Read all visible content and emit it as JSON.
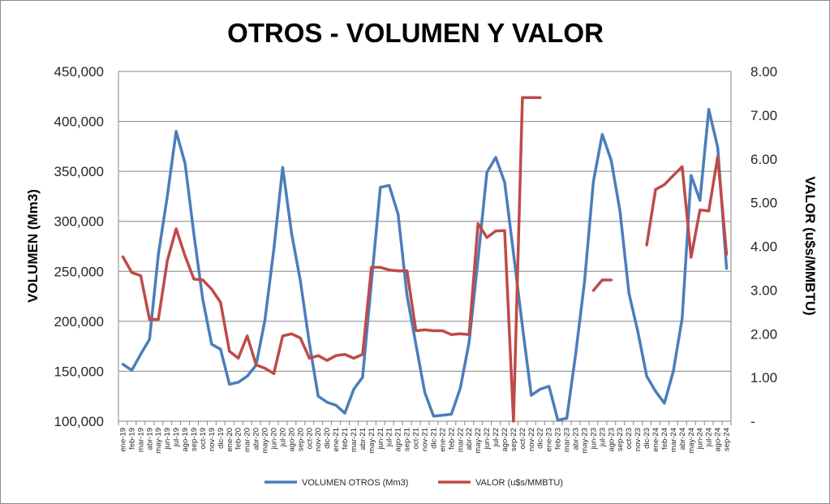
{
  "chart_data": {
    "type": "line",
    "title": "OTROS - VOLUMEN Y VALOR",
    "ylabel_left": "VOLUMEN (Mm3)",
    "ylabel_right": "VALOR (u$s/MMBTU)",
    "y_left_range": [
      100000,
      450000
    ],
    "y_right_range": [
      0,
      8
    ],
    "y_left_ticks": [
      "100,000",
      "150,000",
      "200,000",
      "250,000",
      "300,000",
      "350,000",
      "400,000",
      "450,000"
    ],
    "y_right_ticks": [
      "-",
      "1.00",
      "2.00",
      "3.00",
      "4.00",
      "5.00",
      "6.00",
      "7.00",
      "8.00"
    ],
    "grid": "horizontal",
    "legend_position": "bottom",
    "categories": [
      "ene-19",
      "feb-19",
      "mar-19",
      "abr-19",
      "may-19",
      "jun-19",
      "jul-19",
      "ago-19",
      "sep-19",
      "oct-19",
      "nov-19",
      "dic-19",
      "ene-20",
      "feb-20",
      "mar-20",
      "abr-20",
      "may-20",
      "jun-20",
      "jul-20",
      "ago-20",
      "sep-20",
      "oct-20",
      "nov-20",
      "dic-20",
      "ene-21",
      "feb-21",
      "mar-21",
      "abr-21",
      "may-21",
      "jun-21",
      "jul-21",
      "ago-21",
      "sep-21",
      "oct-21",
      "nov-21",
      "dic-21",
      "ene-22",
      "feb-22",
      "mar-22",
      "abr-22",
      "may-22",
      "jun-22",
      "jul-22",
      "ago-22",
      "sep-22",
      "oct-22",
      "nov-22",
      "dic-22",
      "ene-23",
      "feb-23",
      "mar-23",
      "abr-23",
      "may-23",
      "jun-23",
      "jul-23",
      "ago-23",
      "sep-23",
      "oct-23",
      "nov-23",
      "dic-23",
      "ene-24",
      "feb-24",
      "mar-24",
      "abr-24",
      "may-24",
      "jun-24",
      "jul-24",
      "ago-24",
      "sep-24"
    ],
    "series": [
      {
        "name": "VOLUMEN OTROS (Mm3)",
        "axis": "left",
        "color": "#4a7ebb",
        "values": [
          157000,
          151000,
          167000,
          182000,
          267000,
          325000,
          390000,
          358000,
          287000,
          222000,
          177000,
          172000,
          137000,
          139000,
          145000,
          156000,
          201000,
          272000,
          354000,
          288000,
          240000,
          178000,
          125000,
          119000,
          116000,
          108000,
          132000,
          144000,
          239000,
          334000,
          336000,
          307000,
          226000,
          177000,
          129000,
          105000,
          106000,
          107000,
          133000,
          179000,
          262000,
          349000,
          364000,
          339000,
          268000,
          195000,
          126000,
          132000,
          135000,
          101000,
          103000,
          167000,
          240000,
          340000,
          387000,
          361000,
          310000,
          228000,
          190000,
          145000,
          130000,
          118000,
          150000,
          203000,
          346000,
          321000,
          412000,
          374000,
          253000
        ]
      },
      {
        "name": "VALOR (u$s/MMBTU)",
        "axis": "right",
        "color": "#be4b48",
        "values": [
          3.76,
          3.4,
          3.33,
          2.33,
          2.33,
          3.67,
          4.4,
          3.78,
          3.25,
          3.23,
          3.02,
          2.72,
          1.6,
          1.44,
          1.95,
          1.29,
          1.21,
          1.09,
          1.95,
          2.0,
          1.9,
          1.44,
          1.5,
          1.39,
          1.5,
          1.53,
          1.44,
          1.53,
          3.52,
          3.52,
          3.46,
          3.44,
          3.44,
          2.07,
          2.09,
          2.07,
          2.07,
          1.98,
          2.0,
          1.98,
          4.52,
          4.2,
          4.35,
          4.36,
          0.0,
          7.4,
          7.4,
          7.4,
          null,
          null,
          null,
          null,
          null,
          2.99,
          3.23,
          3.23,
          null,
          null,
          null,
          4.03,
          5.3,
          5.41,
          5.62,
          5.82,
          3.75,
          4.83,
          4.81,
          6.05,
          3.82
        ]
      }
    ]
  }
}
